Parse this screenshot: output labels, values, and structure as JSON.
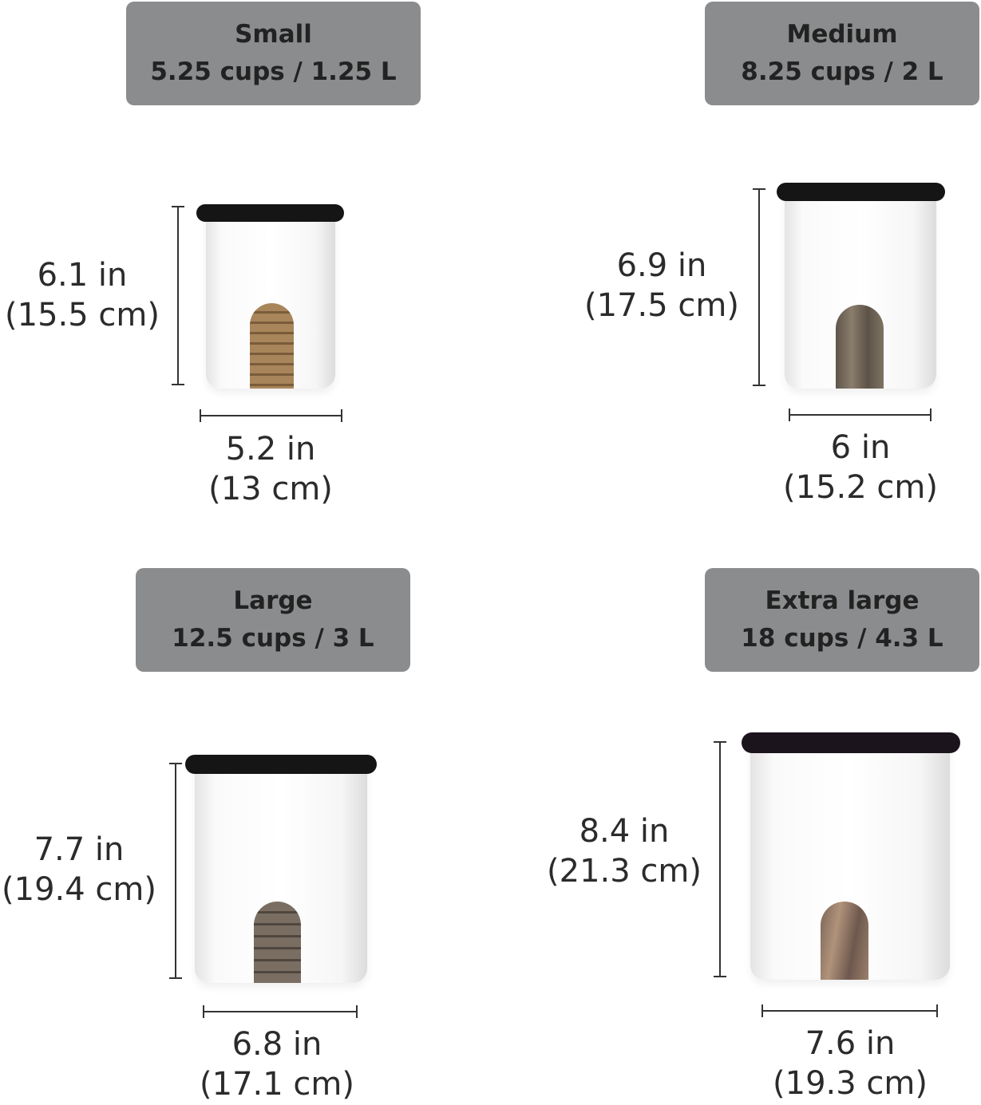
{
  "sizes": [
    {
      "name": "Small",
      "capacity": "5.25 cups / 1.25 L",
      "height_in": "6.1 in",
      "height_cm": "(15.5 cm)",
      "width_in": "5.2 in",
      "width_cm": "(13 cm)",
      "window_color": "#9b7a4e"
    },
    {
      "name": "Medium",
      "capacity": "8.25 cups / 2 L",
      "height_in": "6.9 in",
      "height_cm": "(17.5 cm)",
      "width_in": "6 in",
      "width_cm": "(15.2 cm)",
      "window_color": "#6e6458"
    },
    {
      "name": "Large",
      "capacity": "12.5 cups / 3 L",
      "height_in": "7.7 in",
      "height_cm": "(19.4 cm)",
      "width_in": "6.8 in",
      "width_cm": "(17.1 cm)",
      "window_color": "#6a6158"
    },
    {
      "name": "Extra large",
      "capacity": "18 cups / 4.3 L",
      "height_in": "8.4 in",
      "height_cm": "(21.3 cm)",
      "width_in": "7.6 in",
      "width_cm": "(19.3 cm)",
      "window_color": "#8a6e5e"
    }
  ],
  "colors": {
    "label_bg": "#8b8c8e",
    "lid": "#151515"
  }
}
